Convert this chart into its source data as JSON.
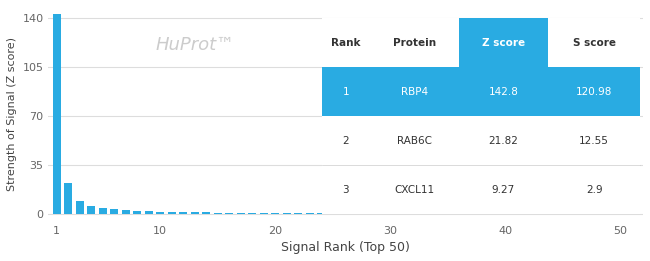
{
  "bar_color": "#29ABE2",
  "background_color": "#ffffff",
  "ylabel": "Strength of Signal (Z score)",
  "xlabel": "Signal Rank (Top 50)",
  "watermark": "HuProt™",
  "watermark_color": "#cccccc",
  "yticks": [
    0,
    35,
    70,
    105,
    140
  ],
  "xticks": [
    1,
    10,
    20,
    30,
    40,
    50
  ],
  "xlim": [
    0.3,
    52
  ],
  "ylim": [
    -5,
    148
  ],
  "table": {
    "headers": [
      "Rank",
      "Protein",
      "Z score",
      "S score"
    ],
    "rows": [
      [
        "1",
        "RBP4",
        "142.8",
        "120.98"
      ],
      [
        "2",
        "RAB6C",
        "21.82",
        "12.55"
      ],
      [
        "3",
        "CXCL11",
        "9.27",
        "2.9"
      ]
    ],
    "header_bg": "#ffffff",
    "row1_bg": "#29ABE2",
    "row_bg": "#ffffff",
    "highlight_col": 2,
    "highlight_col_header_bg": "#29ABE2",
    "highlight_col_header_fg": "#ffffff",
    "text_color_normal": "#333333",
    "text_color_highlight": "#ffffff"
  },
  "top50_z_scores": [
    142.8,
    21.82,
    9.27,
    5.5,
    4.2,
    3.1,
    2.5,
    2.0,
    1.8,
    1.5,
    1.3,
    1.1,
    1.0,
    0.9,
    0.8,
    0.75,
    0.7,
    0.65,
    0.6,
    0.55,
    0.5,
    0.48,
    0.45,
    0.43,
    0.4,
    0.38,
    0.36,
    0.34,
    0.32,
    0.3,
    0.28,
    0.26,
    0.25,
    0.23,
    0.22,
    0.21,
    0.2,
    0.19,
    0.18,
    0.17,
    0.16,
    0.15,
    0.14,
    0.13,
    0.12,
    0.11,
    0.1,
    0.09,
    0.08,
    0.07
  ]
}
